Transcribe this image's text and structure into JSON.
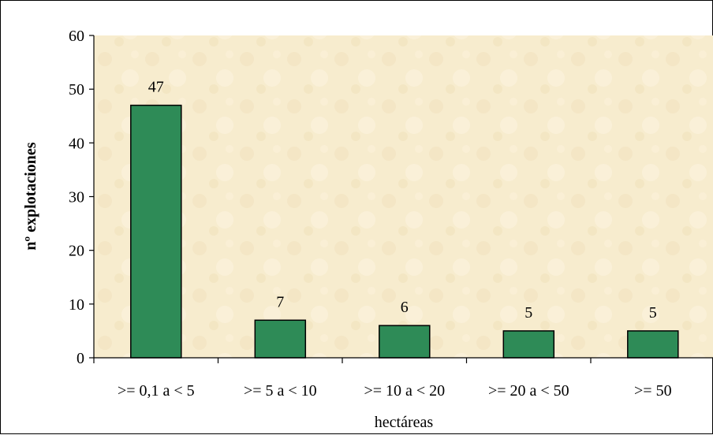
{
  "chart_data": {
    "type": "bar",
    "categories": [
      ">= 0,1 a < 5",
      ">= 5 a < 10",
      ">= 10 a < 20",
      ">= 20 a < 50",
      ">= 50"
    ],
    "values": [
      47,
      7,
      6,
      5,
      5
    ],
    "data_labels": [
      "47",
      "7",
      "6",
      "5",
      "5"
    ],
    "xlabel": "hectáreas",
    "ylabel": "nº explotaciones",
    "ylim": [
      0,
      60
    ],
    "yticks": [
      0,
      10,
      20,
      30,
      40,
      50,
      60
    ],
    "grid": false,
    "legend": "none",
    "colors": {
      "bar_fill": "#2e8b57",
      "bar_stroke": "#000000",
      "plot_background": "#f7eccc"
    }
  }
}
